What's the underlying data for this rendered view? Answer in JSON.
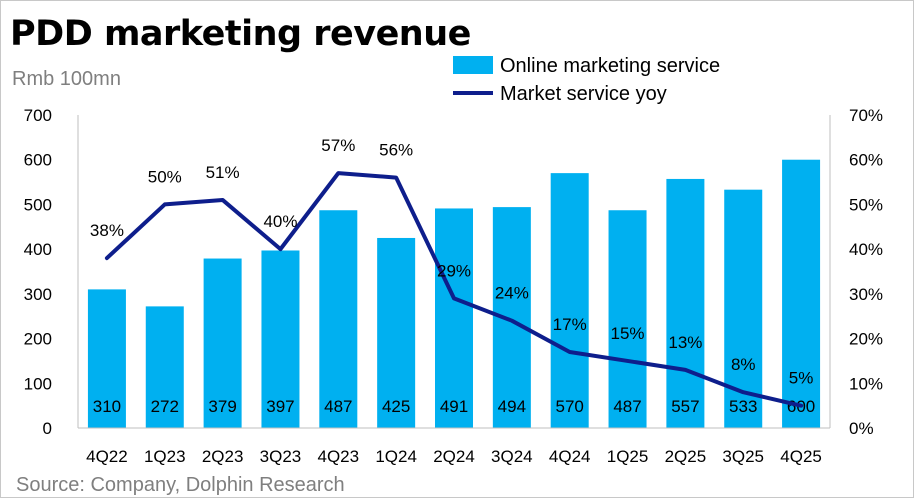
{
  "title": "PDD marketing revenue",
  "unit_label": "Rmb 100mn",
  "source": "Source: Company, Dolphin Research",
  "colors": {
    "bar": "#00b0f0",
    "line": "#0e1e8c"
  },
  "chart_data": {
    "type": "bar",
    "categories": [
      "4Q22",
      "1Q23",
      "2Q23",
      "3Q23",
      "4Q23",
      "1Q24",
      "2Q24",
      "3Q24",
      "4Q24",
      "1Q25",
      "2Q25",
      "3Q25",
      "4Q25"
    ],
    "series": [
      {
        "name": "Online marketing service",
        "type": "bar",
        "axis": "left",
        "values": [
          310,
          272,
          379,
          397,
          487,
          425,
          491,
          494,
          570,
          487,
          557,
          533,
          600
        ],
        "labels": [
          "310",
          "272",
          "379",
          "397",
          "487",
          "425",
          "491",
          "494",
          "570",
          "487",
          "557",
          "533",
          "600"
        ]
      },
      {
        "name": "Market service yoy",
        "type": "line",
        "axis": "right",
        "values": [
          38,
          50,
          51,
          40,
          57,
          56,
          29,
          24,
          17,
          15,
          13,
          8,
          5
        ],
        "labels": [
          "38%",
          "50%",
          "51%",
          "40%",
          "57%",
          "56%",
          "29%",
          "24%",
          "17%",
          "15%",
          "13%",
          "8%",
          "5%"
        ]
      }
    ],
    "ylim": [
      0,
      700
    ],
    "y_ticks": [
      "0",
      "100",
      "200",
      "300",
      "400",
      "500",
      "600",
      "700"
    ],
    "y2lim": [
      0,
      70
    ],
    "y2_ticks": [
      "0%",
      "10%",
      "20%",
      "30%",
      "40%",
      "50%",
      "60%",
      "70%"
    ],
    "grid": false,
    "legend": "top-right"
  }
}
